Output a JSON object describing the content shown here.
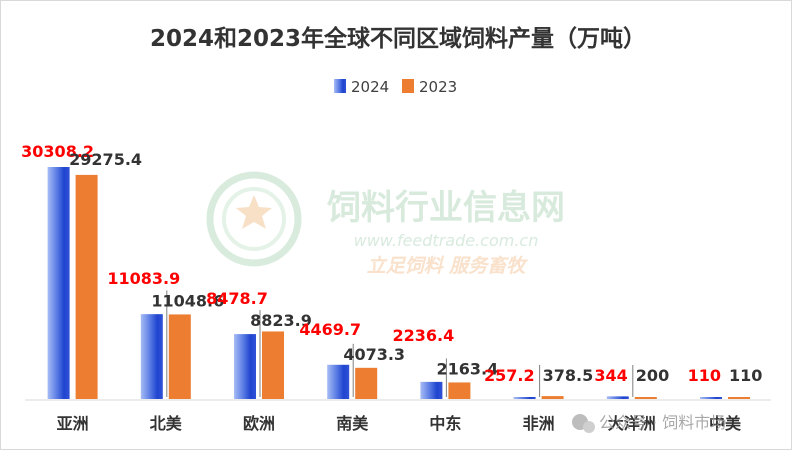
{
  "chart_data": {
    "type": "bar",
    "title": "2024和2023年全球不同区域饲料产量（万吨）",
    "categories": [
      "亚洲",
      "北美",
      "欧洲",
      "南美",
      "中东",
      "非洲",
      "大洋洲",
      "中美"
    ],
    "series": [
      {
        "name": "2024",
        "values": [
          30308.2,
          11083.9,
          8478.7,
          4469.7,
          2236.4,
          257.2,
          344,
          110
        ],
        "labels": [
          "30308.2",
          "11083.9",
          "8478.7",
          "4469.7",
          "2236.4",
          "257.2",
          "344",
          "110"
        ],
        "color": "#2f55d4",
        "label_color": "#ff0000"
      },
      {
        "name": "2023",
        "values": [
          29275.4,
          11048.6,
          8823.9,
          4073.3,
          2163.4,
          378.5,
          200,
          110
        ],
        "labels": [
          "29275.4",
          "11048.6",
          "8823.9",
          "4073.3",
          "2163.4",
          "378.5",
          "200",
          "110"
        ],
        "color": "#ed7d31",
        "label_color": "#333333"
      }
    ],
    "legend_position": "top-right",
    "grid": false
  },
  "watermark": {
    "name": "饲料行业信息网",
    "url": "www.feedtrade.com.cn",
    "slogan": "立足饲料    服务畜牧",
    "credit": "公众号 · 饲料市场",
    "colors": {
      "green": "#3ea45b",
      "orange": "#f0a050"
    }
  }
}
